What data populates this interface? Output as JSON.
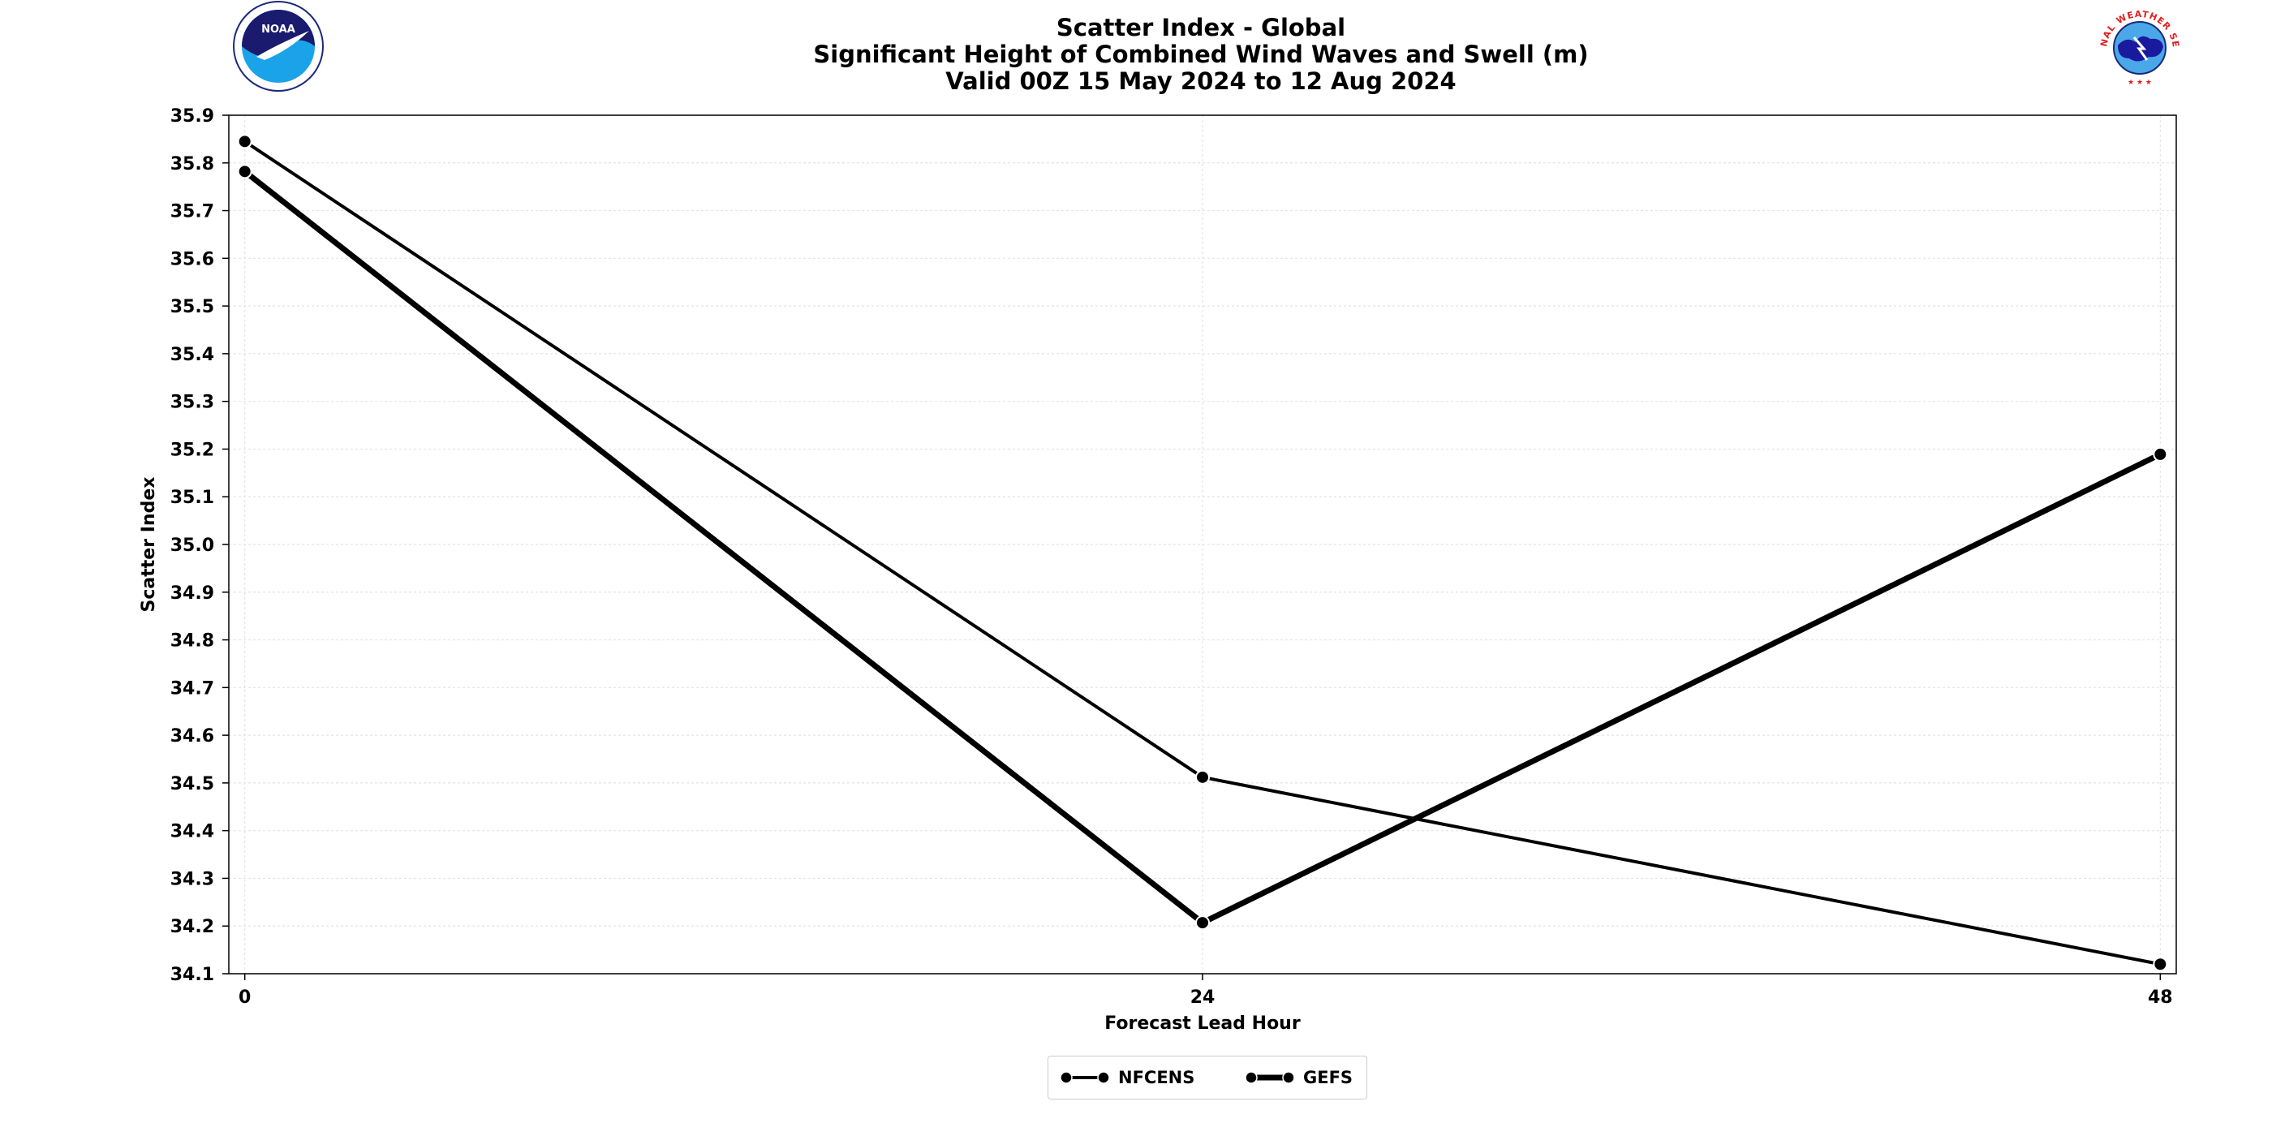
{
  "title": {
    "line1": "Scatter Index - Global",
    "line2": "Significant Height of Combined Wind Waves and Swell (m)",
    "line3": "Valid 00Z 15 May 2024 to 12 Aug 2024"
  },
  "logos": {
    "left": "noaa-logo",
    "right": "nws-logo",
    "noaa_text": "NOAA",
    "nws_text": "NATIONAL WEATHER SERVICE"
  },
  "chart_data": {
    "type": "line",
    "xlabel": "Forecast Lead Hour",
    "ylabel": "Scatter Index",
    "x": [
      0,
      24,
      48
    ],
    "xticks": [
      "0",
      "24",
      "48"
    ],
    "xlim": [
      -0.4,
      48.4
    ],
    "ylim": [
      34.1,
      35.9
    ],
    "yticks": [
      "34.1",
      "34.2",
      "34.3",
      "34.4",
      "34.5",
      "34.6",
      "34.7",
      "34.8",
      "34.9",
      "35.0",
      "35.1",
      "35.2",
      "35.3",
      "35.4",
      "35.5",
      "35.6",
      "35.7",
      "35.8",
      "35.9"
    ],
    "grid": true,
    "legend_position": "bottom-center",
    "series": [
      {
        "name": "NFCENS",
        "values": [
          35.845,
          34.512,
          34.12
        ],
        "color": "#000000",
        "line_style": "thin"
      },
      {
        "name": "GEFS",
        "values": [
          35.782,
          34.207,
          35.189
        ],
        "color": "#000000",
        "line_style": "thick"
      }
    ]
  }
}
